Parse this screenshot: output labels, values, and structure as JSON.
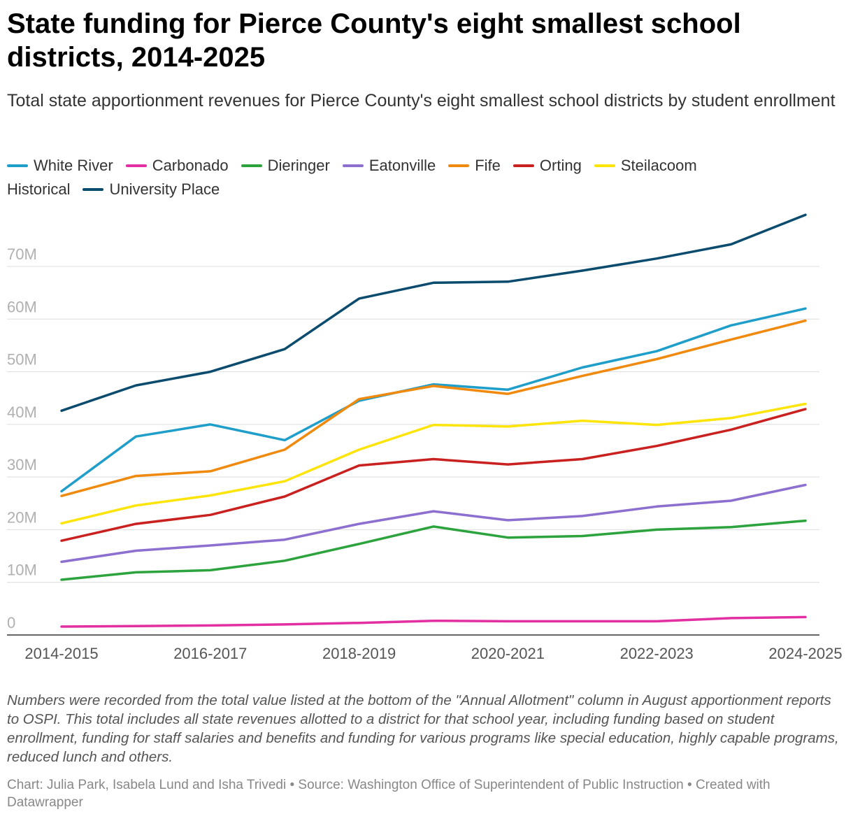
{
  "header": {
    "title": "State funding for Pierce County's eight smallest school districts, 2014-2025",
    "subtitle": "Total state apportionment revenues for Pierce County's eight smallest school districts by student enrollment"
  },
  "legend": {
    "row1": [
      {
        "label": "White River",
        "color": "#1f9ec9"
      },
      {
        "label": "Carbonado",
        "color": "#e22fa2"
      },
      {
        "label": "Dieringer",
        "color": "#2ca33c"
      },
      {
        "label": "Eatonville",
        "color": "#8c6fcf"
      },
      {
        "label": "Fife",
        "color": "#f08a0e"
      },
      {
        "label": "Orting",
        "color": "#c8211f"
      },
      {
        "label": "Steilacoom",
        "color": "#fde40b"
      }
    ],
    "row2_prefix": "Historical",
    "row2": [
      {
        "label": "University Place",
        "color": "#0b4b6e"
      }
    ]
  },
  "chart_data": {
    "type": "line",
    "title": "State funding for Pierce County's eight smallest school districts, 2014-2025",
    "xlabel": "",
    "ylabel": "",
    "ylim": [
      0,
      80
    ],
    "yunit": "M",
    "yticks": [
      0,
      10,
      20,
      30,
      40,
      50,
      60,
      70
    ],
    "ytick_labels": [
      "0",
      "10M",
      "20M",
      "30M",
      "40M",
      "50M",
      "60M",
      "70M"
    ],
    "categories": [
      "2014-2015",
      "2015-2016",
      "2016-2017",
      "2017-2018",
      "2018-2019",
      "2019-2020",
      "2020-2021",
      "2021-2022",
      "2022-2023",
      "2023-2024",
      "2024-2025"
    ],
    "xtick_labels": [
      "2014-2015",
      "2016-2017",
      "2018-2019",
      "2020-2021",
      "2022-2023",
      "2024-2025"
    ],
    "series": [
      {
        "name": "University Place",
        "color": "#0b4b6e",
        "values": [
          42.6,
          47.4,
          50.0,
          54.3,
          63.9,
          66.9,
          67.1,
          69.2,
          71.5,
          74.2,
          79.8
        ]
      },
      {
        "name": "White River",
        "color": "#1f9ec9",
        "values": [
          27.3,
          37.7,
          40.0,
          37.0,
          44.5,
          47.6,
          46.6,
          50.8,
          53.9,
          58.8,
          62.0
        ]
      },
      {
        "name": "Fife",
        "color": "#f08a0e",
        "values": [
          26.4,
          30.2,
          31.1,
          35.2,
          44.8,
          47.3,
          45.8,
          49.2,
          52.4,
          56.1,
          59.7
        ]
      },
      {
        "name": "Steilacoom",
        "color": "#fde40b",
        "values": [
          21.2,
          24.6,
          26.5,
          29.2,
          35.2,
          39.9,
          39.6,
          40.7,
          39.9,
          41.2,
          43.9
        ]
      },
      {
        "name": "Orting",
        "color": "#c8211f",
        "values": [
          17.9,
          21.1,
          22.8,
          26.3,
          32.2,
          33.4,
          32.4,
          33.4,
          35.9,
          39.0,
          42.9
        ]
      },
      {
        "name": "Eatonville",
        "color": "#8c6fcf",
        "values": [
          13.9,
          16.0,
          17.0,
          18.1,
          21.1,
          23.5,
          21.8,
          22.6,
          24.4,
          25.5,
          28.5
        ]
      },
      {
        "name": "Dieringer",
        "color": "#2ca33c",
        "values": [
          10.5,
          11.9,
          12.3,
          14.1,
          17.3,
          20.6,
          18.5,
          18.8,
          20.0,
          20.5,
          21.7
        ]
      },
      {
        "name": "Carbonado",
        "color": "#e22fa2",
        "values": [
          1.6,
          1.7,
          1.8,
          2.0,
          2.3,
          2.7,
          2.6,
          2.6,
          2.6,
          3.2,
          3.4
        ]
      }
    ]
  },
  "footer": {
    "notes": "Numbers were recorded from the total value listed at the bottom of the \"Annual Allotment\" column in August apportionment reports to OSPI. This total includes all state revenues allotted to a district for that school year, including funding based on student enrollment, funding for staff salaries and benefits and funding for various programs like special education, highly capable programs, reduced lunch and others.",
    "credits": "Chart: Julia Park, Isabela Lund and Isha Trivedi • Source: Washington Office of Superintendent of Public Instruction • Created with Datawrapper"
  }
}
